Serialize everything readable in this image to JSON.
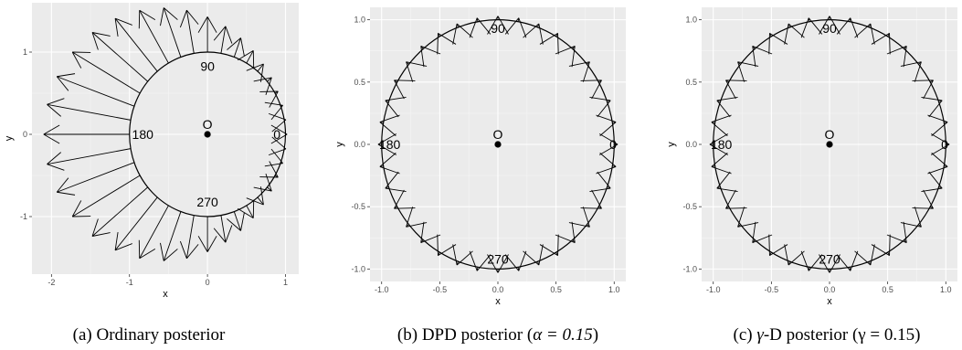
{
  "chart_data": [
    {
      "type": "scatter",
      "title": "",
      "xlabel": "x",
      "ylabel": "y",
      "xlim": [
        -2.25,
        1.17
      ],
      "ylim": [
        -1.7,
        1.6
      ],
      "xticks": [
        -2,
        -1,
        0,
        1
      ],
      "yticks": [
        -1,
        0,
        1
      ],
      "grid": true,
      "origin": {
        "x": 0,
        "y": 0,
        "label": "O"
      },
      "circle_radius": 1,
      "angle_labels": [
        "90",
        "180",
        "270",
        "0"
      ],
      "arrow_directions_deg": [
        0,
        10,
        20,
        30,
        40,
        50,
        60,
        70,
        80,
        90,
        100,
        110,
        120,
        130,
        140,
        150,
        160,
        170,
        180,
        190,
        200,
        210,
        220,
        230,
        240,
        250,
        260,
        270,
        280,
        290,
        300,
        310,
        320,
        330,
        340,
        350
      ],
      "arrow_tip_radius_pattern": {
        "min": 1.02,
        "max": 2.1,
        "peak_angle_deg": 180
      },
      "caption": {
        "prefix": "(a) Ordinary posterior",
        "math": "",
        "suffix": ""
      }
    },
    {
      "type": "scatter",
      "title": "",
      "xlabel": "x",
      "ylabel": "y",
      "xlim": [
        -1.1,
        1.1
      ],
      "ylim": [
        -1.1,
        1.1
      ],
      "xticks": [
        -1.0,
        -0.5,
        0.0,
        0.5,
        1.0
      ],
      "yticks": [
        -1.0,
        -0.5,
        0.0,
        0.5,
        1.0
      ],
      "tick_labels": [
        "-1.0",
        "-0.5",
        "0.0",
        "0.5",
        "1.0"
      ],
      "grid": true,
      "origin": {
        "x": 0,
        "y": 0,
        "label": "O"
      },
      "circle_radius": 1,
      "angle_labels": [
        "90",
        "180",
        "270",
        "0"
      ],
      "arrow_directions_deg": [
        0,
        10,
        20,
        30,
        40,
        50,
        60,
        70,
        80,
        90,
        100,
        110,
        120,
        130,
        140,
        150,
        160,
        170,
        180,
        190,
        200,
        210,
        220,
        230,
        240,
        250,
        260,
        270,
        280,
        290,
        300,
        310,
        320,
        330,
        340,
        350
      ],
      "arrow_tip_radius": 1.03,
      "caption": {
        "prefix": "(b) DPD posterior (",
        "math": "α = 0.15",
        "suffix": ")"
      }
    },
    {
      "type": "scatter",
      "title": "",
      "xlabel": "x",
      "ylabel": "y",
      "xlim": [
        -1.1,
        1.1
      ],
      "ylim": [
        -1.1,
        1.1
      ],
      "xticks": [
        -1.0,
        -0.5,
        0.0,
        0.5,
        1.0
      ],
      "yticks": [
        -1.0,
        -0.5,
        0.0,
        0.5,
        1.0
      ],
      "tick_labels": [
        "-1.0",
        "-0.5",
        "0.0",
        "0.5",
        "1.0"
      ],
      "grid": true,
      "origin": {
        "x": 0,
        "y": 0,
        "label": "O"
      },
      "circle_radius": 1,
      "angle_labels": [
        "90",
        "180",
        "270",
        "0"
      ],
      "arrow_directions_deg": [
        0,
        10,
        20,
        30,
        40,
        50,
        60,
        70,
        80,
        90,
        100,
        110,
        120,
        130,
        140,
        150,
        160,
        170,
        180,
        190,
        200,
        210,
        220,
        230,
        240,
        250,
        260,
        270,
        280,
        290,
        300,
        310,
        320,
        330,
        340,
        350
      ],
      "arrow_tip_radius": 1.03,
      "caption": {
        "prefix": "(c) ",
        "math": "γ",
        "suffix": "-D posterior (γ = 0.15)"
      }
    }
  ],
  "colors": {
    "panel_background": "#ebebeb",
    "grid_major": "#ffffff",
    "grid_minor": "#f5f5f5",
    "line": "#000000"
  }
}
